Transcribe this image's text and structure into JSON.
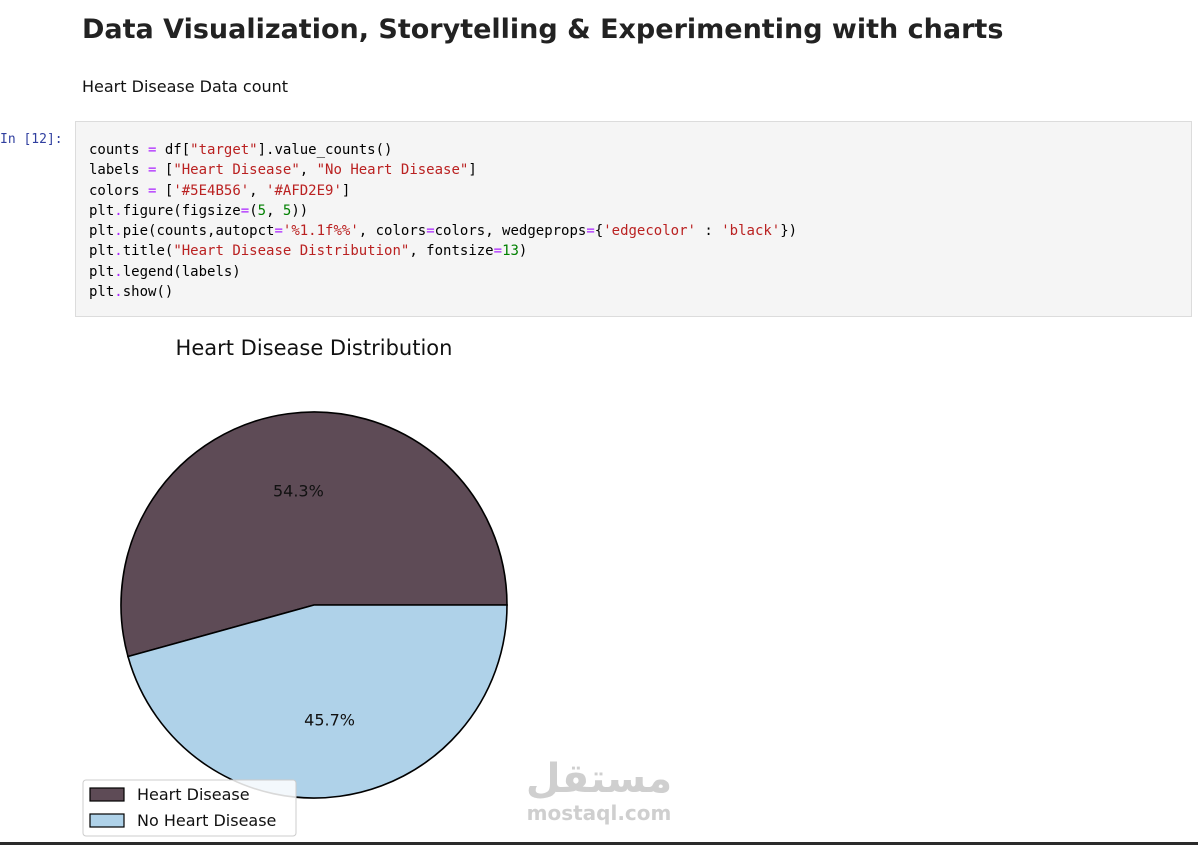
{
  "notebook": {
    "heading": "Data Visualization, Storytelling & Experimenting with charts",
    "subtext": "Heart Disease Data count",
    "cell_prompt": "In [12]:",
    "code_lines": [
      [
        [
          "counts ",
          ""
        ],
        [
          "=",
          "o"
        ],
        [
          " df[",
          ""
        ],
        [
          "\"target\"",
          "s"
        ],
        [
          "].value_counts()",
          ""
        ]
      ],
      [
        [
          "labels ",
          ""
        ],
        [
          "=",
          "o"
        ],
        [
          " [",
          ""
        ],
        [
          "\"Heart Disease\"",
          "s"
        ],
        [
          ", ",
          ""
        ],
        [
          "\"No Heart Disease\"",
          "s"
        ],
        [
          "]",
          ""
        ]
      ],
      [
        [
          "colors ",
          ""
        ],
        [
          "=",
          "o"
        ],
        [
          " [",
          ""
        ],
        [
          "'#5E4B56'",
          "s"
        ],
        [
          ", ",
          ""
        ],
        [
          "'#AFD2E9'",
          "s"
        ],
        [
          "]",
          ""
        ]
      ],
      [
        [
          "plt",
          ""
        ],
        [
          ".",
          "o"
        ],
        [
          "figure(figsize",
          ""
        ],
        [
          "=",
          "o"
        ],
        [
          "(",
          ""
        ],
        [
          "5",
          "n"
        ],
        [
          ", ",
          ""
        ],
        [
          "5",
          "n"
        ],
        [
          "))",
          ""
        ]
      ],
      [
        [
          "plt",
          ""
        ],
        [
          ".",
          "o"
        ],
        [
          "pie(counts,autopct",
          ""
        ],
        [
          "=",
          "o"
        ],
        [
          "'%1.1f%%'",
          "s"
        ],
        [
          ", colors",
          ""
        ],
        [
          "=",
          "o"
        ],
        [
          "colors, wedgeprops",
          ""
        ],
        [
          "=",
          "o"
        ],
        [
          "{",
          ""
        ],
        [
          "'edgecolor'",
          "s"
        ],
        [
          " : ",
          ""
        ],
        [
          "'black'",
          "s"
        ],
        [
          "})",
          ""
        ]
      ],
      [
        [
          "plt",
          ""
        ],
        [
          ".",
          "o"
        ],
        [
          "title(",
          ""
        ],
        [
          "\"Heart Disease Distribution\"",
          "s"
        ],
        [
          ", fontsize",
          ""
        ],
        [
          "=",
          "o"
        ],
        [
          "13",
          "n"
        ],
        [
          ")",
          ""
        ]
      ],
      [
        [
          "plt",
          ""
        ],
        [
          ".",
          "o"
        ],
        [
          "legend(labels)",
          ""
        ]
      ],
      [
        [
          "plt",
          ""
        ],
        [
          ".",
          "o"
        ],
        [
          "show()",
          ""
        ]
      ]
    ]
  },
  "chart_data": {
    "type": "pie",
    "title": "Heart Disease Distribution",
    "slices": [
      {
        "label": "Heart Disease",
        "value": 54.3,
        "pct_label": "54.3%",
        "color": "#5E4B56"
      },
      {
        "label": "No Heart Disease",
        "value": 45.7,
        "pct_label": "45.7%",
        "color": "#AFD2E9"
      }
    ],
    "edgecolor": "black",
    "start_angle_deg": 0,
    "legend_placement": "lower-left"
  },
  "watermark": {
    "logo_text": "مستقل",
    "url_text": "mostaql.com"
  }
}
